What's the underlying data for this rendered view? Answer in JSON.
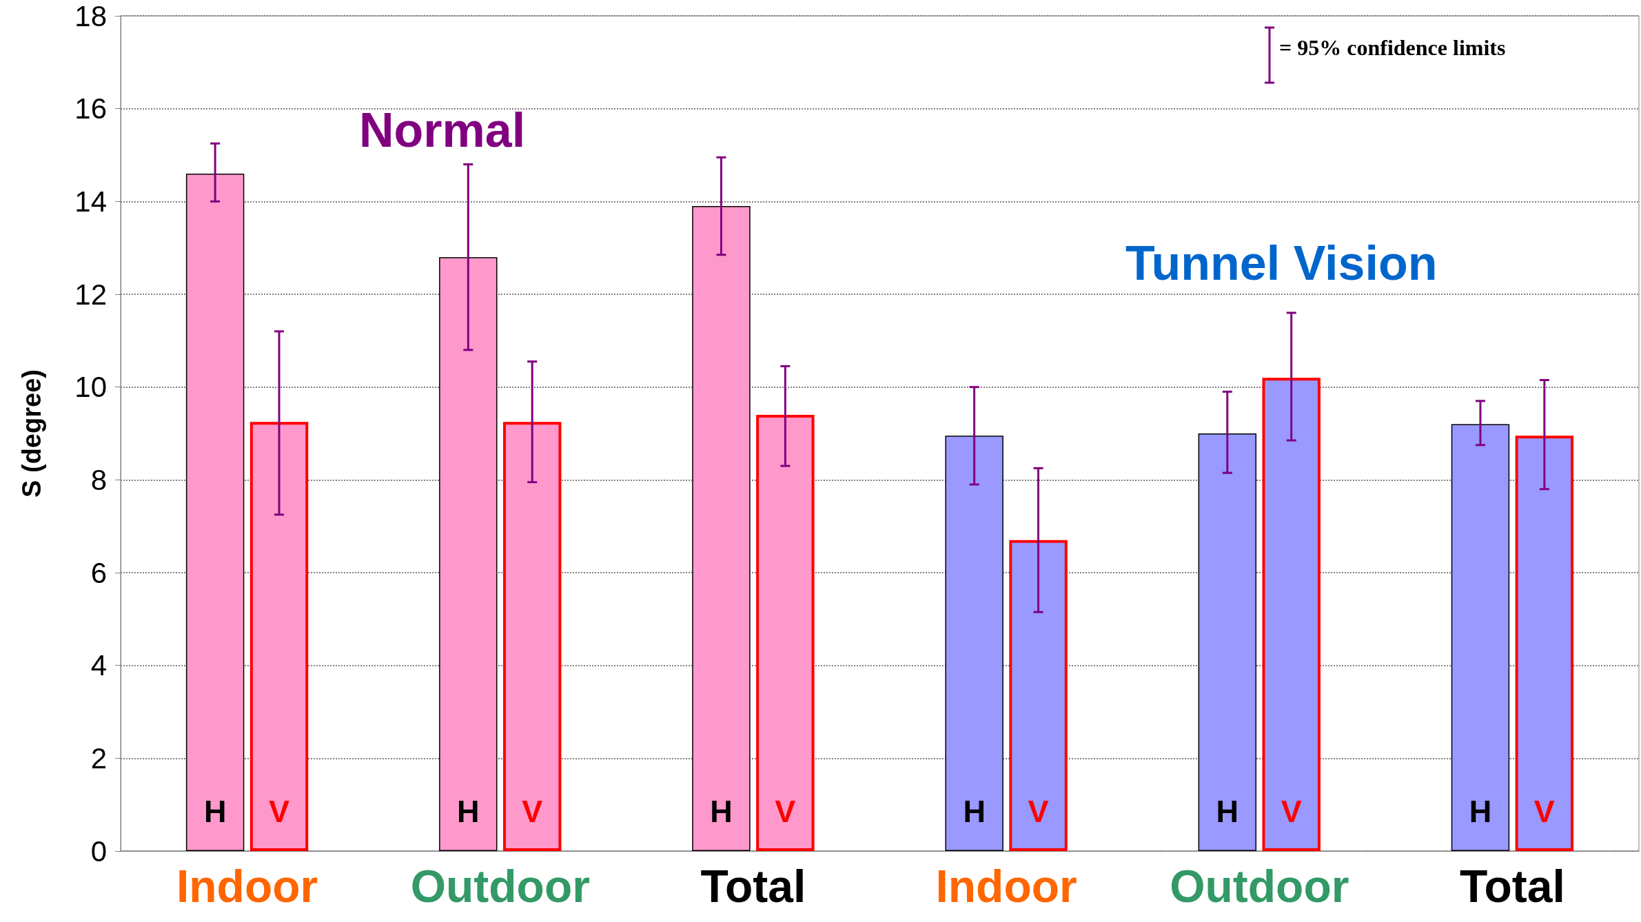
{
  "chart_data": {
    "type": "bar",
    "ylabel": "S (degree)",
    "categories": [
      "Indoor",
      "Outdoor",
      "Total",
      "Indoor",
      "Outdoor",
      "Total"
    ],
    "series": [
      {
        "name": "H",
        "colors": [
          "#ff99cc",
          "#ff99cc",
          "#ff99cc",
          "#9999ff",
          "#9999ff",
          "#9999ff"
        ],
        "values": [
          14.6,
          12.8,
          13.9,
          8.95,
          9.0,
          9.2
        ],
        "errors": [
          [
            14.0,
            15.25
          ],
          [
            10.8,
            14.8
          ],
          [
            12.85,
            14.95
          ],
          [
            7.9,
            10.0
          ],
          [
            8.15,
            9.9
          ],
          [
            8.75,
            9.7
          ]
        ]
      },
      {
        "name": "V",
        "colors": [
          "#ff99cc",
          "#ff99cc",
          "#ff99cc",
          "#9999ff",
          "#9999ff",
          "#9999ff"
        ],
        "values": [
          9.25,
          9.25,
          9.4,
          6.7,
          10.2,
          8.95
        ],
        "errors": [
          [
            7.25,
            11.2
          ],
          [
            7.95,
            10.55
          ],
          [
            8.3,
            10.45
          ],
          [
            5.15,
            8.25
          ],
          [
            8.85,
            11.6
          ],
          [
            7.8,
            10.15
          ]
        ]
      }
    ],
    "ylim": [
      0,
      18
    ],
    "yticks": [
      0,
      2,
      4,
      6,
      8,
      10,
      12,
      14,
      16,
      18
    ],
    "grid": "y",
    "legend": false,
    "annotations": [
      "Normal",
      "Tunnel Vision",
      "= 95% confidence limits"
    ]
  }
}
